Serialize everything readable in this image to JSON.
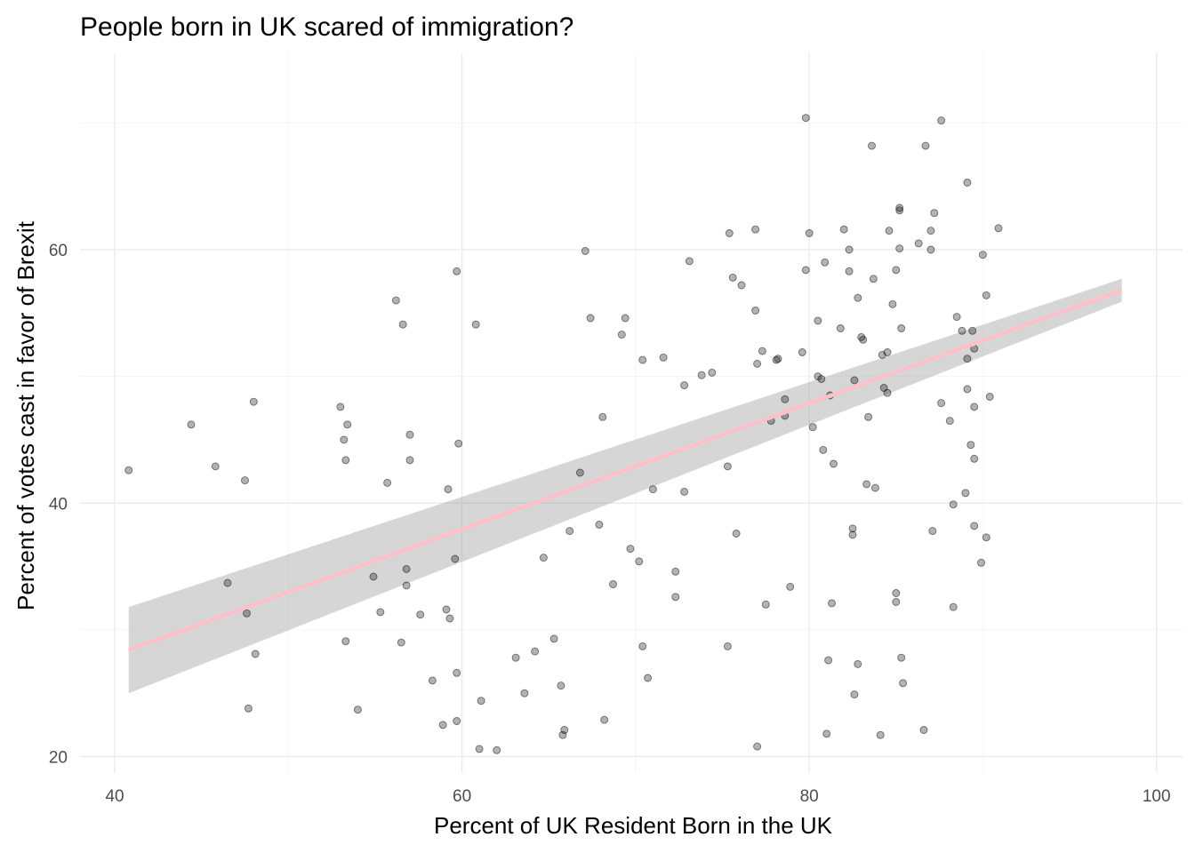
{
  "chart_data": {
    "type": "scatter",
    "title": "People born in UK scared of immigration?",
    "xlabel": "Percent of UK Resident Born in the UK",
    "ylabel": "Percent of votes cast in favor of Brexit",
    "xlim": [
      38,
      101.5
    ],
    "ylim": [
      18.7,
      75.5
    ],
    "x_ticks": [
      40,
      60,
      80,
      100
    ],
    "y_ticks": [
      20,
      40,
      60
    ],
    "grid": true,
    "legend": "none",
    "colors": {
      "points": "#000000",
      "fit_line": "#ffc0cb",
      "ribbon": "#999999"
    },
    "fit": {
      "method": "linear",
      "x": [
        40.8,
        98.0
      ],
      "y": [
        28.4,
        56.8
      ],
      "ci_lower": [
        25.0,
        55.9
      ],
      "ci_upper": [
        31.8,
        57.7
      ]
    },
    "points": [
      [
        40.8,
        42.6
      ],
      [
        44.4,
        46.2
      ],
      [
        45.8,
        42.9
      ],
      [
        46.5,
        33.7
      ],
      [
        47.5,
        41.8
      ],
      [
        47.6,
        31.3
      ],
      [
        47.7,
        23.8
      ],
      [
        48.0,
        48.0
      ],
      [
        48.1,
        28.1
      ],
      [
        53.0,
        47.6
      ],
      [
        53.2,
        45.0
      ],
      [
        53.3,
        43.4
      ],
      [
        53.3,
        29.1
      ],
      [
        53.4,
        46.2
      ],
      [
        54.0,
        23.7
      ],
      [
        54.9,
        34.2
      ],
      [
        55.3,
        31.4
      ],
      [
        55.7,
        41.6
      ],
      [
        56.2,
        56.0
      ],
      [
        56.5,
        29.0
      ],
      [
        56.6,
        54.1
      ],
      [
        56.8,
        34.8
      ],
      [
        56.8,
        33.5
      ],
      [
        57.0,
        45.4
      ],
      [
        57.0,
        43.4
      ],
      [
        57.6,
        31.2
      ],
      [
        58.3,
        26.0
      ],
      [
        58.9,
        22.5
      ],
      [
        59.1,
        31.6
      ],
      [
        59.2,
        41.1
      ],
      [
        59.3,
        30.9
      ],
      [
        59.6,
        35.6
      ],
      [
        59.7,
        58.3
      ],
      [
        59.7,
        26.6
      ],
      [
        59.7,
        22.8
      ],
      [
        59.8,
        44.7
      ],
      [
        60.8,
        54.1
      ],
      [
        61.1,
        24.4
      ],
      [
        61.0,
        20.6
      ],
      [
        62.0,
        20.5
      ],
      [
        63.1,
        27.8
      ],
      [
        63.6,
        25.0
      ],
      [
        64.2,
        28.3
      ],
      [
        64.7,
        35.7
      ],
      [
        65.3,
        29.3
      ],
      [
        65.7,
        25.6
      ],
      [
        65.8,
        21.7
      ],
      [
        65.9,
        22.1
      ],
      [
        66.2,
        37.8
      ],
      [
        66.8,
        42.4
      ],
      [
        67.1,
        59.9
      ],
      [
        67.4,
        54.6
      ],
      [
        67.9,
        38.3
      ],
      [
        68.1,
        46.8
      ],
      [
        68.2,
        22.9
      ],
      [
        68.7,
        33.6
      ],
      [
        69.2,
        53.3
      ],
      [
        69.4,
        54.6
      ],
      [
        69.7,
        36.4
      ],
      [
        70.2,
        35.4
      ],
      [
        70.4,
        28.7
      ],
      [
        70.4,
        51.3
      ],
      [
        70.7,
        26.2
      ],
      [
        71.0,
        41.1
      ],
      [
        71.6,
        51.5
      ],
      [
        72.3,
        34.6
      ],
      [
        72.3,
        32.6
      ],
      [
        72.8,
        40.9
      ],
      [
        73.1,
        59.1
      ],
      [
        72.8,
        49.3
      ],
      [
        73.8,
        50.1
      ],
      [
        74.4,
        50.3
      ],
      [
        75.3,
        42.9
      ],
      [
        75.3,
        28.7
      ],
      [
        75.4,
        61.3
      ],
      [
        75.6,
        57.8
      ],
      [
        75.8,
        37.6
      ],
      [
        76.1,
        57.2
      ],
      [
        76.9,
        61.6
      ],
      [
        77.0,
        51.0
      ],
      [
        77.0,
        20.8
      ],
      [
        76.9,
        55.2
      ],
      [
        77.3,
        52.0
      ],
      [
        77.5,
        32.0
      ],
      [
        77.8,
        46.5
      ],
      [
        78.1,
        51.3
      ],
      [
        78.2,
        51.4
      ],
      [
        78.6,
        48.2
      ],
      [
        78.9,
        33.4
      ],
      [
        78.6,
        46.9
      ],
      [
        79.6,
        51.9
      ],
      [
        79.8,
        70.4
      ],
      [
        79.8,
        58.4
      ],
      [
        80.0,
        61.3
      ],
      [
        80.2,
        46.0
      ],
      [
        80.5,
        50.0
      ],
      [
        80.5,
        54.4
      ],
      [
        80.7,
        49.8
      ],
      [
        80.8,
        44.2
      ],
      [
        80.9,
        59.0
      ],
      [
        81.0,
        21.8
      ],
      [
        81.1,
        27.6
      ],
      [
        81.2,
        48.5
      ],
      [
        81.3,
        32.1
      ],
      [
        81.4,
        43.1
      ],
      [
        81.8,
        53.8
      ],
      [
        82.3,
        58.3
      ],
      [
        82.0,
        61.6
      ],
      [
        82.3,
        60.0
      ],
      [
        82.5,
        37.5
      ],
      [
        82.5,
        38.0
      ],
      [
        82.6,
        49.7
      ],
      [
        82.6,
        24.9
      ],
      [
        82.8,
        27.3
      ],
      [
        82.8,
        56.2
      ],
      [
        83.0,
        53.1
      ],
      [
        83.1,
        52.9
      ],
      [
        83.3,
        41.5
      ],
      [
        83.4,
        46.8
      ],
      [
        83.7,
        57.7
      ],
      [
        83.8,
        41.2
      ],
      [
        83.6,
        68.2
      ],
      [
        84.2,
        51.7
      ],
      [
        84.5,
        51.9
      ],
      [
        84.6,
        61.5
      ],
      [
        84.8,
        55.7
      ],
      [
        84.1,
        21.7
      ],
      [
        84.5,
        48.7
      ],
      [
        84.3,
        49.1
      ],
      [
        85.0,
        58.4
      ],
      [
        85.0,
        32.9
      ],
      [
        85.2,
        63.3
      ],
      [
        85.4,
        25.8
      ],
      [
        85.3,
        53.8
      ],
      [
        85.3,
        27.8
      ],
      [
        85.2,
        60.1
      ],
      [
        85.0,
        32.2
      ],
      [
        85.2,
        63.1
      ],
      [
        86.3,
        60.5
      ],
      [
        86.7,
        68.2
      ],
      [
        86.6,
        22.1
      ],
      [
        87.0,
        60.0
      ],
      [
        87.0,
        61.5
      ],
      [
        87.1,
        37.8
      ],
      [
        87.2,
        62.9
      ],
      [
        87.6,
        47.9
      ],
      [
        87.6,
        70.2
      ],
      [
        88.3,
        39.9
      ],
      [
        88.5,
        54.7
      ],
      [
        88.8,
        53.6
      ],
      [
        88.1,
        46.5
      ],
      [
        88.3,
        31.8
      ],
      [
        89.1,
        65.3
      ],
      [
        89.0,
        40.8
      ],
      [
        89.1,
        49.0
      ],
      [
        89.5,
        43.5
      ],
      [
        89.3,
        44.6
      ],
      [
        89.5,
        38.2
      ],
      [
        89.4,
        53.6
      ],
      [
        89.5,
        47.6
      ],
      [
        89.9,
        35.3
      ],
      [
        89.1,
        51.4
      ],
      [
        89.5,
        52.2
      ],
      [
        90.0,
        59.6
      ],
      [
        90.2,
        56.4
      ],
      [
        90.2,
        37.3
      ],
      [
        90.4,
        48.4
      ],
      [
        90.9,
        61.7
      ]
    ]
  }
}
